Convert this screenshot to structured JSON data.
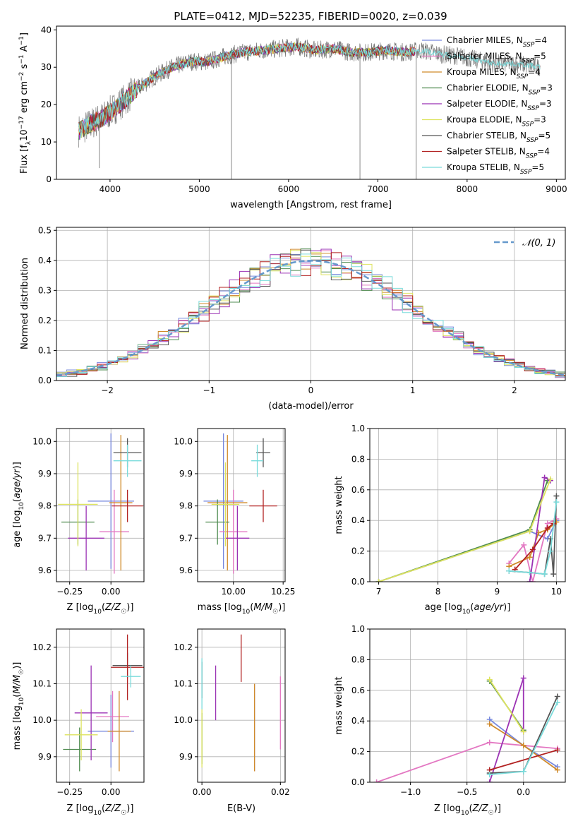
{
  "figure": {
    "title": "PLATE=0412, MJD=52235, FIBERID=0020, z=0.039"
  },
  "colors": {
    "Chabrier MILES": "#7788dd",
    "Salpeter MILES": "#e377c2",
    "Kroupa MILES": "#d08a2a",
    "Chabrier ELODIE": "#4f8c50",
    "Salpeter ELODIE": "#9b32b4",
    "Kroupa ELODIE": "#dde35e",
    "Chabrier STELIB": "#555555",
    "Salpeter STELIB": "#b22222",
    "Kroupa STELIB": "#7adbdb",
    "model_line": "#6699cc"
  },
  "chart_data": [
    {
      "id": "spectrum",
      "type": "line",
      "title": "PLATE=0412, MJD=52235, FIBERID=0020, z=0.039",
      "xlabel": "wavelength [Angstrom, rest frame]",
      "ylabel": "Flux [f_λ10^-17 erg cm^-2 s^-1 A^-1]",
      "xlim": [
        3400,
        9100
      ],
      "ylim": [
        0,
        41
      ],
      "xticks": [
        4000,
        5000,
        6000,
        7000,
        8000,
        9000
      ],
      "yticks": [
        0,
        10,
        20,
        30,
        40
      ],
      "grid": false,
      "legend_position": "top-right",
      "legend": [
        {
          "label": "Chabrier MILES, N_SSP=4",
          "color": "Chabrier MILES"
        },
        {
          "label": "Salpeter MILES, N_SSP=5",
          "color": "Salpeter MILES"
        },
        {
          "label": "Kroupa MILES, N_SSP=4",
          "color": "Kroupa MILES"
        },
        {
          "label": "Chabrier ELODIE, N_SSP=3",
          "color": "Chabrier ELODIE"
        },
        {
          "label": "Salpeter ELODIE, N_SSP=3",
          "color": "Salpeter ELODIE"
        },
        {
          "label": "Kroupa ELODIE, N_SSP=3",
          "color": "Kroupa ELODIE"
        },
        {
          "label": "Chabrier STELIB, N_SSP=5",
          "color": "Chabrier STELIB"
        },
        {
          "label": "Salpeter STELIB, N_SSP=4",
          "color": "Salpeter STELIB"
        },
        {
          "label": "Kroupa STELIB, N_SSP=5",
          "color": "Kroupa STELIB"
        }
      ],
      "continuum": {
        "x": [
          3650,
          3800,
          3950,
          4100,
          4300,
          4500,
          4700,
          4900,
          5100,
          5300,
          5500,
          5700,
          5900,
          6100,
          6300,
          6500,
          6700,
          6900,
          7100,
          7300,
          7500,
          7700,
          7900,
          8100,
          8300,
          8500,
          8700,
          8820
        ],
        "y": [
          13,
          15,
          17,
          20,
          24,
          27.5,
          30,
          31.5,
          31.5,
          33,
          34,
          34.5,
          35,
          35.5,
          34.5,
          35,
          34,
          34,
          34.5,
          34,
          34.5,
          33.5,
          33,
          32,
          31,
          31,
          30.5,
          30
        ]
      },
      "model_range": [
        3650,
        7420
      ],
      "spikes": [
        {
          "x": 3880,
          "y": 3
        },
        {
          "x": 5360,
          "y": 0
        },
        {
          "x": 6800,
          "y": 0
        },
        {
          "x": 7430,
          "y": 0
        }
      ]
    },
    {
      "id": "residuals",
      "type": "line",
      "xlabel": "(data-model)/error",
      "ylabel": "Normed distribution",
      "xlim": [
        -2.5,
        2.5
      ],
      "ylim": [
        0,
        0.51
      ],
      "xticks": [
        -2,
        -1,
        0,
        1,
        2
      ],
      "yticks": [
        0.0,
        0.1,
        0.2,
        0.3,
        0.4,
        0.5
      ],
      "grid": true,
      "legend_position": "top-right",
      "legend": [
        {
          "label": "𝒩(0, 1)",
          "color": "model_line"
        }
      ],
      "bin_width": 0.1
    },
    {
      "id": "age_vs_Z",
      "type": "scatter",
      "xlabel": "Z [log10(Z/Z☉)]",
      "ylabel": "age  [log10(age/yr)]",
      "xlim": [
        -0.33,
        0.2
      ],
      "ylim": [
        9.565,
        10.04
      ],
      "xticks": [
        -0.25,
        0.0
      ],
      "yticks": [
        9.6,
        9.7,
        9.8,
        9.9,
        10.0
      ],
      "grid": true,
      "points": [
        {
          "c": "Chabrier MILES",
          "x": 0.0,
          "xe": 0.14,
          "y": 9.815,
          "ye": 0.21
        },
        {
          "c": "Salpeter MILES",
          "x": 0.02,
          "xe": 0.09,
          "y": 9.72,
          "ye": 0.13
        },
        {
          "c": "Kroupa MILES",
          "x": 0.06,
          "xe": 0.07,
          "y": 9.81,
          "ye": 0.21
        },
        {
          "c": "Chabrier ELODIE",
          "x": -0.2,
          "xe": 0.1,
          "y": 9.75,
          "ye": 0.07
        },
        {
          "c": "Salpeter ELODIE",
          "x": -0.15,
          "xe": 0.11,
          "y": 9.7,
          "ye": 0.1
        },
        {
          "c": "Kroupa ELODIE",
          "x": -0.2,
          "xe": 0.12,
          "y": 9.805,
          "ye": 0.13
        },
        {
          "c": "Chabrier STELIB",
          "x": 0.1,
          "xe": 0.085,
          "y": 9.965,
          "ye": 0.045
        },
        {
          "c": "Salpeter STELIB",
          "x": 0.1,
          "xe": 0.095,
          "y": 9.8,
          "ye": 0.05
        },
        {
          "c": "Kroupa STELIB",
          "x": 0.1,
          "xe": 0.085,
          "y": 9.94,
          "ye": 0.05
        }
      ]
    },
    {
      "id": "age_vs_mass",
      "type": "scatter",
      "xlabel": "mass [log10(M/M☉)]",
      "ylabel": "",
      "xlim": [
        9.82,
        10.26
      ],
      "ylim": [
        9.565,
        10.04
      ],
      "xticks": [
        10.0,
        10.25
      ],
      "yticks": [
        9.6,
        9.7,
        9.8,
        9.9,
        10.0
      ],
      "grid": true,
      "points": [
        {
          "c": "Chabrier MILES",
          "x": 9.95,
          "xe": 0.1,
          "y": 9.815,
          "ye": 0.21
        },
        {
          "c": "Salpeter MILES",
          "x": 10.0,
          "xe": 0.07,
          "y": 9.72,
          "ye": 0.13
        },
        {
          "c": "Kroupa MILES",
          "x": 9.97,
          "xe": 0.1,
          "y": 9.81,
          "ye": 0.21
        },
        {
          "c": "Chabrier ELODIE",
          "x": 9.92,
          "xe": 0.06,
          "y": 9.75,
          "ye": 0.07
        },
        {
          "c": "Salpeter ELODIE",
          "x": 10.02,
          "xe": 0.06,
          "y": 9.7,
          "ye": 0.1
        },
        {
          "c": "Kroupa ELODIE",
          "x": 9.96,
          "xe": 0.07,
          "y": 9.805,
          "ye": 0.13
        },
        {
          "c": "Chabrier STELIB",
          "x": 10.15,
          "xe": 0.035,
          "y": 9.965,
          "ye": 0.045
        },
        {
          "c": "Salpeter STELIB",
          "x": 10.15,
          "xe": 0.07,
          "y": 9.8,
          "ye": 0.05
        },
        {
          "c": "Kroupa STELIB",
          "x": 10.12,
          "xe": 0.03,
          "y": 9.94,
          "ye": 0.05
        }
      ]
    },
    {
      "id": "weight_vs_age",
      "type": "line",
      "xlabel": "age  [log10(age/yr)]",
      "ylabel": "mass weight",
      "xlim": [
        6.85,
        10.15
      ],
      "ylim": [
        0,
        1.0
      ],
      "xticks": [
        7,
        8,
        9,
        10
      ],
      "yticks": [
        0.0,
        0.2,
        0.4,
        0.6,
        0.8,
        1.0
      ],
      "grid": true,
      "series": [
        {
          "c": "Chabrier MILES",
          "x": [
            7.0,
            9.55,
            9.85,
            10.0
          ],
          "y": [
            0.0,
            0.33,
            0.28,
            0.4
          ]
        },
        {
          "c": "Salpeter MILES",
          "x": [
            9.2,
            9.45,
            9.6,
            9.85,
            10.0
          ],
          "y": [
            0.12,
            0.24,
            0.0,
            0.38,
            0.41
          ]
        },
        {
          "c": "Kroupa MILES",
          "x": [
            9.2,
            9.55,
            9.7,
            9.85,
            10.0
          ],
          "y": [
            0.1,
            0.16,
            0.32,
            0.34,
            0.39
          ]
        },
        {
          "c": "Chabrier ELODIE",
          "x": [
            7.0,
            9.55,
            9.85
          ],
          "y": [
            0.0,
            0.34,
            0.66
          ]
        },
        {
          "c": "Salpeter ELODIE",
          "x": [
            9.55,
            9.8,
            9.9
          ],
          "y": [
            0.0,
            0.68,
            0.66
          ]
        },
        {
          "c": "Kroupa ELODIE",
          "x": [
            7.0,
            9.55,
            9.9
          ],
          "y": [
            0.0,
            0.33,
            0.67
          ]
        },
        {
          "c": "Chabrier STELIB",
          "x": [
            9.2,
            9.55,
            9.8,
            9.9,
            9.95,
            10.0
          ],
          "y": [
            0.07,
            0.06,
            0.05,
            0.28,
            0.05,
            0.56
          ]
        },
        {
          "c": "Salpeter STELIB",
          "x": [
            9.3,
            9.6,
            9.85,
            9.95
          ],
          "y": [
            0.08,
            0.21,
            0.35,
            0.38
          ]
        },
        {
          "c": "Kroupa STELIB",
          "x": [
            9.2,
            9.55,
            9.8,
            9.9,
            10.0
          ],
          "y": [
            0.07,
            0.06,
            0.05,
            0.2,
            0.52
          ]
        }
      ]
    },
    {
      "id": "mass_vs_Z",
      "type": "scatter",
      "xlabel": "Z [log10(Z/Z☉)]",
      "ylabel": "mass [log10(M/M☉)]",
      "xlim": [
        -0.33,
        0.2
      ],
      "ylim": [
        9.83,
        10.25
      ],
      "xticks": [
        -0.25,
        0.0
      ],
      "yticks": [
        9.9,
        10.0,
        10.1,
        10.2
      ],
      "grid": true,
      "points": [
        {
          "c": "Chabrier MILES",
          "x": 0.0,
          "xe": 0.14,
          "y": 9.97,
          "ye": 0.1
        },
        {
          "c": "Salpeter MILES",
          "x": 0.01,
          "xe": 0.1,
          "y": 10.01,
          "ye": 0.07
        },
        {
          "c": "Kroupa MILES",
          "x": 0.05,
          "xe": 0.07,
          "y": 9.97,
          "ye": 0.11
        },
        {
          "c": "Chabrier ELODIE",
          "x": -0.19,
          "xe": 0.1,
          "y": 9.92,
          "ye": 0.06
        },
        {
          "c": "Salpeter ELODIE",
          "x": -0.12,
          "xe": 0.1,
          "y": 10.02,
          "ye": 0.13
        },
        {
          "c": "Kroupa ELODIE",
          "x": -0.18,
          "xe": 0.1,
          "y": 9.96,
          "ye": 0.07
        },
        {
          "c": "Chabrier STELIB",
          "x": 0.1,
          "xe": 0.09,
          "y": 10.15,
          "ye": 0.035
        },
        {
          "c": "Salpeter STELIB",
          "x": 0.1,
          "xe": 0.1,
          "y": 10.145,
          "ye": 0.09
        },
        {
          "c": "Kroupa STELIB",
          "x": 0.12,
          "xe": 0.06,
          "y": 10.12,
          "ye": 0.03
        }
      ]
    },
    {
      "id": "mass_vs_ebv",
      "type": "scatter",
      "xlabel": "E(B-V)",
      "ylabel": "",
      "xlim": [
        -0.0011,
        0.0212
      ],
      "ylim": [
        9.83,
        10.25
      ],
      "xticks": [
        0.0,
        0.02
      ],
      "yticks": [
        9.9,
        10.0,
        10.1,
        10.2
      ],
      "grid": true,
      "points": [
        {
          "c": "Chabrier MILES",
          "x": 0.0134,
          "xe": 0,
          "y": 9.98,
          "ye": 0.12
        },
        {
          "c": "Salpeter MILES",
          "x": 0.02,
          "xe": 0,
          "y": 10.02,
          "ye": 0.1
        },
        {
          "c": "Kroupa MILES",
          "x": 0.0134,
          "xe": 0,
          "y": 9.98,
          "ye": 0.12
        },
        {
          "c": "Chabrier ELODIE",
          "x": 0.0,
          "xe": 0,
          "y": 9.95,
          "ye": 0.07
        },
        {
          "c": "Salpeter ELODIE",
          "x": 0.0035,
          "xe": 0,
          "y": 10.075,
          "ye": 0.075
        },
        {
          "c": "Kroupa ELODIE",
          "x": 0.0,
          "xe": 0,
          "y": 9.95,
          "ye": 0.08
        },
        {
          "c": "Chabrier STELIB",
          "x": 0.0,
          "xe": 0,
          "y": 10.11,
          "ye": 0.05
        },
        {
          "c": "Salpeter STELIB",
          "x": 0.01,
          "xe": 0,
          "y": 10.17,
          "ye": 0.065
        },
        {
          "c": "Kroupa STELIB",
          "x": 0.0,
          "xe": 0,
          "y": 10.1,
          "ye": 0.07
        }
      ]
    },
    {
      "id": "weight_vs_Z",
      "type": "line",
      "xlabel": "Z [log10(Z/Z☉)]",
      "ylabel": "mass weight",
      "xlim": [
        -1.36,
        0.37
      ],
      "ylim": [
        0,
        1.0
      ],
      "xticks": [
        -1.0,
        -0.5,
        0.0
      ],
      "yticks": [
        0.0,
        0.2,
        0.4,
        0.6,
        0.8,
        1.0
      ],
      "grid": true,
      "series": [
        {
          "c": "Chabrier MILES",
          "x": [
            -0.3,
            0.0,
            0.3
          ],
          "y": [
            0.41,
            0.24,
            0.1
          ]
        },
        {
          "c": "Salpeter MILES",
          "x": [
            -1.3,
            -0.3,
            0.0,
            0.3
          ],
          "y": [
            0.0,
            0.26,
            0.24,
            0.22
          ]
        },
        {
          "c": "Kroupa MILES",
          "x": [
            -0.3,
            0.0,
            0.3
          ],
          "y": [
            0.38,
            0.24,
            0.08
          ]
        },
        {
          "c": "Chabrier ELODIE",
          "x": [
            -0.3,
            0.0
          ],
          "y": [
            0.66,
            0.34
          ]
        },
        {
          "c": "Salpeter ELODIE",
          "x": [
            -0.3,
            0.0,
            0.0
          ],
          "y": [
            0.0,
            0.68,
            0.33
          ]
        },
        {
          "c": "Kroupa ELODIE",
          "x": [
            -0.3,
            0.0
          ],
          "y": [
            0.67,
            0.33
          ]
        },
        {
          "c": "Chabrier STELIB",
          "x": [
            -0.3,
            0.0,
            0.3
          ],
          "y": [
            0.06,
            0.07,
            0.56
          ]
        },
        {
          "c": "Salpeter STELIB",
          "x": [
            -0.3,
            0.3
          ],
          "y": [
            0.08,
            0.21
          ]
        },
        {
          "c": "Kroupa STELIB",
          "x": [
            -0.3,
            0.0,
            0.3
          ],
          "y": [
            0.05,
            0.07,
            0.52
          ]
        }
      ]
    }
  ]
}
